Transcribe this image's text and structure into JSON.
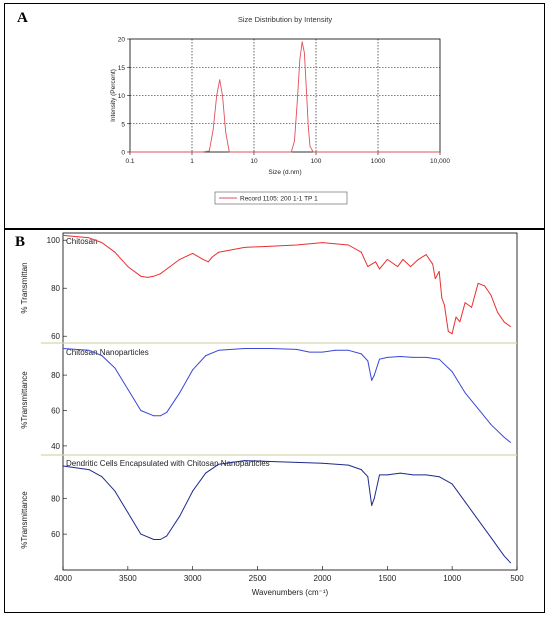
{
  "panel_a": {
    "letter": "A",
    "legend_entry": "Record 1105: 200 1-1 TP 1"
  },
  "panel_b": {
    "letter": "B"
  },
  "colors": {
    "dls_line": "#e0505a",
    "ftir_chitosan": "#e83030",
    "ftir_nanoparticles": "#3a46d8",
    "ftir_dendritic": "#1e2a8a",
    "separator": "#d8d8b0"
  },
  "chart_data": [
    {
      "type": "line",
      "title": "Size Distribution by Intensity",
      "xlabel": "Size (d.nm)",
      "ylabel": "Intensity (Percent)",
      "xscale": "log",
      "xlim": [
        0.1,
        10000
      ],
      "ylim": [
        0,
        20
      ],
      "xticks": [
        0.1,
        1,
        10,
        100,
        1000,
        10000
      ],
      "xtick_labels": [
        "0.1",
        "1",
        "10",
        "100",
        "1000",
        "10,000"
      ],
      "yticks": [
        0,
        5,
        10,
        15,
        20
      ],
      "grid": true,
      "legend_position": "bottom",
      "series": [
        {
          "name": "Record 1105: 200 1-1 TP 1",
          "x": [
            1.5,
            1.9,
            2.2,
            2.5,
            2.8,
            3.1,
            3.5,
            4.0,
            40,
            45,
            50,
            55,
            60,
            65,
            70,
            75,
            80,
            90
          ],
          "y": [
            0,
            0.2,
            4.0,
            10.0,
            12.8,
            10.0,
            3.5,
            0,
            0,
            2.0,
            9.0,
            16.5,
            19.5,
            17.5,
            11.0,
            4.5,
            1.0,
            0
          ]
        }
      ]
    },
    {
      "type": "line",
      "xlabel": "Wavenumbers (cm⁻¹)",
      "xlim": [
        4000,
        500
      ],
      "xticks": [
        4000,
        3500,
        3000,
        2500,
        2000,
        1500,
        1000,
        500
      ],
      "panels": [
        {
          "name": "Chitosan",
          "ylabel": "% Transmittan",
          "ylim": [
            58,
            103
          ],
          "yticks": [
            60,
            80,
            100
          ],
          "x": [
            4000,
            3800,
            3700,
            3600,
            3500,
            3400,
            3350,
            3300,
            3250,
            3200,
            3100,
            3000,
            2920,
            2880,
            2850,
            2800,
            2600,
            2400,
            2200,
            2000,
            1800,
            1700,
            1650,
            1590,
            1560,
            1500,
            1420,
            1380,
            1320,
            1260,
            1200,
            1150,
            1130,
            1100,
            1080,
            1060,
            1030,
            1000,
            970,
            940,
            900,
            850,
            800,
            750,
            700,
            650,
            600,
            550
          ],
          "y": [
            102,
            101,
            99,
            95,
            89,
            85,
            84.5,
            85,
            86,
            88,
            92,
            94.5,
            92,
            91,
            93,
            95,
            97,
            97.5,
            98,
            99,
            98,
            95,
            89,
            91,
            88,
            92,
            89,
            92,
            89,
            92,
            94,
            90,
            84,
            87,
            76,
            73,
            62,
            61,
            68,
            66,
            74,
            72,
            82,
            81,
            77,
            70,
            66,
            64
          ]
        },
        {
          "name": "Chitosan Nanoparticles",
          "ylabel": "%Transmittance",
          "ylim": [
            36,
            97
          ],
          "yticks": [
            40,
            60,
            80
          ],
          "x": [
            4000,
            3800,
            3700,
            3600,
            3500,
            3400,
            3300,
            3250,
            3200,
            3100,
            3000,
            2900,
            2800,
            2600,
            2400,
            2200,
            2100,
            2000,
            1900,
            1800,
            1700,
            1650,
            1620,
            1600,
            1560,
            1500,
            1400,
            1300,
            1200,
            1100,
            1000,
            900,
            800,
            700,
            600,
            550
          ],
          "y": [
            95,
            94,
            91,
            84,
            72,
            60,
            57,
            57,
            59,
            70,
            83,
            91,
            94,
            95,
            95,
            94.5,
            93,
            93,
            94,
            94,
            92,
            88,
            77,
            80,
            89,
            90,
            90.5,
            90,
            90,
            89,
            82,
            70,
            61,
            52,
            45,
            42
          ]
        },
        {
          "name": "Dendritic Cells Encapsulated with Chitosan Nanoparticles",
          "ylabel": "%Transmittance",
          "ylim": [
            40,
            103
          ],
          "yticks": [
            60,
            80
          ],
          "x": [
            4000,
            3800,
            3700,
            3600,
            3500,
            3400,
            3300,
            3250,
            3200,
            3100,
            3000,
            2900,
            2800,
            2600,
            2400,
            2200,
            2000,
            1800,
            1700,
            1650,
            1620,
            1600,
            1560,
            1500,
            1400,
            1300,
            1200,
            1100,
            1000,
            900,
            800,
            700,
            600,
            550
          ],
          "y": [
            98,
            96,
            92,
            84,
            72,
            60,
            57,
            57,
            59,
            70,
            84,
            94,
            99,
            101,
            100.5,
            100,
            99.5,
            98.5,
            96,
            92,
            76,
            80,
            93,
            93,
            94,
            93,
            93,
            92,
            88,
            78,
            68,
            58,
            48,
            44
          ]
        }
      ]
    }
  ]
}
